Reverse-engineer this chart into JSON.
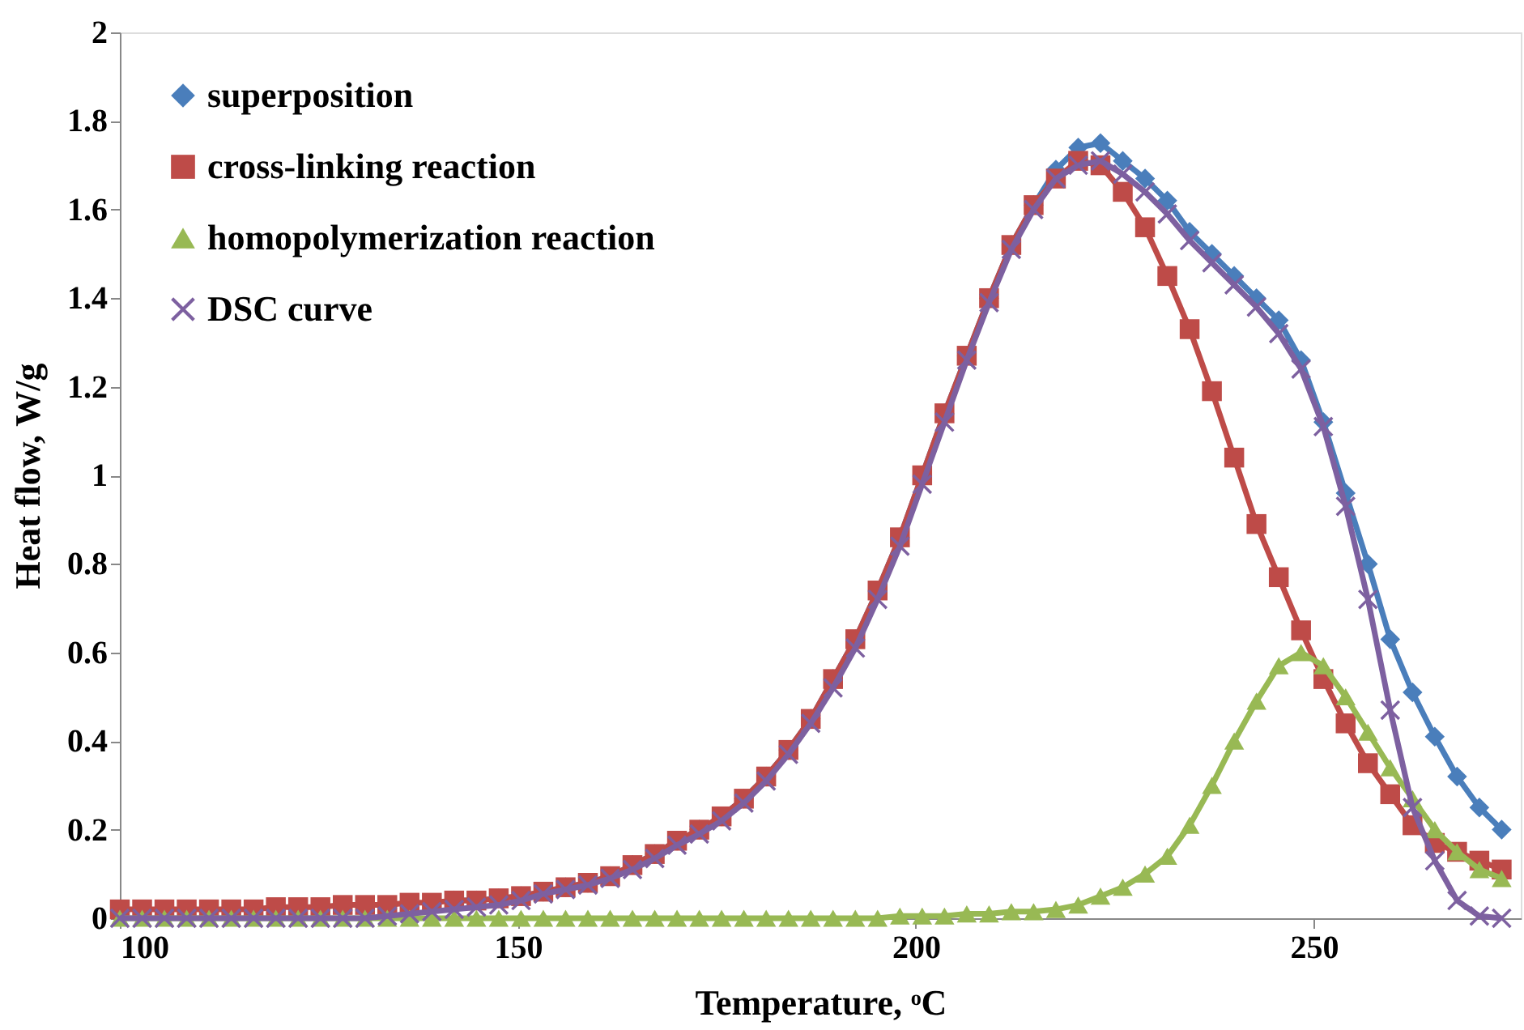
{
  "chart_data": {
    "type": "line",
    "xlabel": "Temperature, ᵒC",
    "ylabel": "Heat flow, W/g",
    "x": [
      100,
      102.8,
      105.6,
      108.4,
      111.2,
      114,
      116.8,
      119.6,
      122.4,
      125.2,
      128,
      130.8,
      133.6,
      136.4,
      139.2,
      142,
      144.8,
      147.6,
      150.4,
      153.2,
      156,
      158.8,
      161.6,
      164.4,
      167.2,
      170,
      172.8,
      175.6,
      178.4,
      181.2,
      184,
      186.8,
      189.6,
      192.4,
      195.2,
      198,
      200.8,
      203.6,
      206.4,
      209.2,
      212,
      214.8,
      217.6,
      220.4,
      223.2,
      226,
      228.8,
      231.6,
      234.4,
      237.2,
      240,
      242.8,
      245.6,
      248.4,
      251.2,
      254,
      256.8,
      259.6,
      262.4,
      265.2,
      268,
      270.8,
      273.6
    ],
    "series": [
      {
        "name": "superposition",
        "color": "#4a7ebb",
        "marker": "diamond",
        "values": [
          null,
          null,
          null,
          null,
          null,
          null,
          null,
          null,
          null,
          null,
          null,
          null,
          null,
          null,
          null,
          0.04,
          0.04,
          0.045,
          0.05,
          0.06,
          0.07,
          0.08,
          0.095,
          0.12,
          0.145,
          0.175,
          0.2,
          0.23,
          0.27,
          0.32,
          0.38,
          0.45,
          0.54,
          0.63,
          0.74,
          0.86,
          1.0,
          1.14,
          1.27,
          1.4,
          1.52,
          1.61,
          1.69,
          1.74,
          1.75,
          1.71,
          1.67,
          1.62,
          1.55,
          1.5,
          1.45,
          1.4,
          1.35,
          1.26,
          1.12,
          0.96,
          0.8,
          0.63,
          0.51,
          0.41,
          0.32,
          0.25,
          0.2
        ]
      },
      {
        "name": "cross-linking reaction",
        "color": "#be4b48",
        "marker": "square",
        "values": [
          0.02,
          0.02,
          0.02,
          0.02,
          0.02,
          0.02,
          0.02,
          0.025,
          0.025,
          0.025,
          0.03,
          0.03,
          0.03,
          0.035,
          0.035,
          0.04,
          0.04,
          0.045,
          0.05,
          0.06,
          0.07,
          0.08,
          0.095,
          0.12,
          0.145,
          0.175,
          0.2,
          0.23,
          0.27,
          0.32,
          0.38,
          0.45,
          0.54,
          0.63,
          0.74,
          0.86,
          1.0,
          1.14,
          1.27,
          1.4,
          1.52,
          1.61,
          1.67,
          1.71,
          1.7,
          1.64,
          1.56,
          1.45,
          1.33,
          1.19,
          1.04,
          0.89,
          0.77,
          0.65,
          0.54,
          0.44,
          0.35,
          0.28,
          0.21,
          0.17,
          0.15,
          0.13,
          0.11
        ]
      },
      {
        "name": "homopolymerization reaction",
        "color": "#98b954",
        "marker": "triangle",
        "values": [
          0,
          0,
          0,
          0,
          0,
          0,
          0,
          0,
          0,
          0,
          0,
          0,
          0,
          0,
          0,
          0,
          0,
          0,
          0,
          0,
          0,
          0,
          0,
          0,
          0,
          0,
          0,
          0,
          0,
          0,
          0,
          0,
          0,
          0,
          0,
          0.005,
          0.005,
          0.005,
          0.01,
          0.01,
          0.015,
          0.015,
          0.02,
          0.03,
          0.05,
          0.07,
          0.1,
          0.14,
          0.21,
          0.3,
          0.4,
          0.49,
          0.57,
          0.6,
          0.57,
          0.5,
          0.42,
          0.34,
          0.27,
          0.2,
          0.15,
          0.11,
          0.09
        ]
      },
      {
        "name": "DSC curve",
        "color": "#7d60a0",
        "marker": "cross",
        "values": [
          0,
          0,
          0,
          0,
          0,
          0,
          0,
          0,
          0,
          0,
          0,
          0,
          0.005,
          0.01,
          0.015,
          0.02,
          0.025,
          0.03,
          0.04,
          0.055,
          0.065,
          0.075,
          0.09,
          0.11,
          0.135,
          0.165,
          0.19,
          0.22,
          0.26,
          0.31,
          0.37,
          0.44,
          0.52,
          0.61,
          0.72,
          0.84,
          0.98,
          1.12,
          1.26,
          1.39,
          1.51,
          1.6,
          1.67,
          1.7,
          1.71,
          1.68,
          1.64,
          1.59,
          1.53,
          1.48,
          1.43,
          1.38,
          1.32,
          1.24,
          1.11,
          0.93,
          0.72,
          0.47,
          0.25,
          0.13,
          0.04,
          0.005,
          0
        ]
      }
    ],
    "xlim": [
      100,
      276
    ],
    "xticks": [
      100,
      150,
      200,
      250
    ],
    "ylim": [
      0,
      2
    ],
    "yticks": [
      0,
      0.2,
      0.4,
      0.6,
      0.8,
      1,
      1.2,
      1.4,
      1.6,
      1.8,
      2
    ],
    "legend": "top left",
    "grid": false,
    "line_style": "solid"
  }
}
